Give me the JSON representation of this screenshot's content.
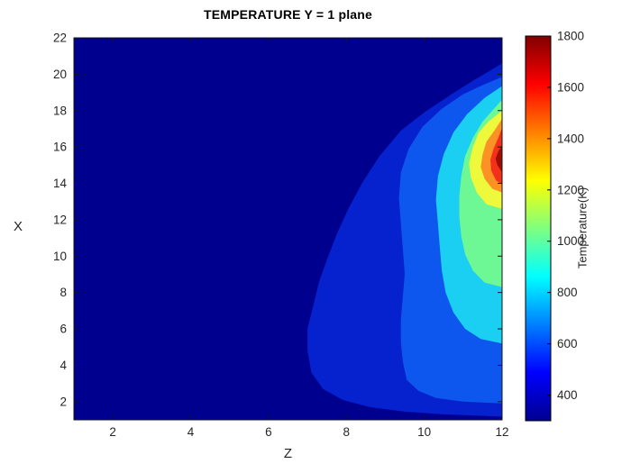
{
  "chart_data": {
    "type": "heatmap",
    "subtype": "filled-contour",
    "title": "TEMPERATURE Y = 1 plane",
    "xlabel": "Z",
    "ylabel": "X",
    "xlim": [
      1,
      12
    ],
    "ylim": [
      1,
      22
    ],
    "xticks": [
      2,
      4,
      6,
      8,
      10,
      12
    ],
    "yticks": [
      2,
      4,
      6,
      8,
      10,
      12,
      14,
      16,
      18,
      20,
      22
    ],
    "grid": false,
    "axis_color": "#151515",
    "tick_label_color": "#262626",
    "hotspot": {
      "z": 12,
      "x": 15.3,
      "peak_value": 1800
    },
    "background_band": {
      "color": "#00008F",
      "value_range": [
        300,
        467
      ]
    },
    "bands": [
      {
        "name": "band-467-633",
        "color": "#0522CE",
        "value_range": [
          467,
          633
        ],
        "points": [
          [
            12,
            1.18
          ],
          [
            10.5,
            1.3
          ],
          [
            9.5,
            1.45
          ],
          [
            8.6,
            1.7
          ],
          [
            7.9,
            2.1
          ],
          [
            7.4,
            2.7
          ],
          [
            7.1,
            3.6
          ],
          [
            7.0,
            4.8
          ],
          [
            7.0,
            6.0
          ],
          [
            7.15,
            7.3
          ],
          [
            7.3,
            8.6
          ],
          [
            7.5,
            9.8
          ],
          [
            7.75,
            11.2
          ],
          [
            8.05,
            12.6
          ],
          [
            8.4,
            14.0
          ],
          [
            8.85,
            15.5
          ],
          [
            9.4,
            16.9
          ],
          [
            10.0,
            17.9
          ],
          [
            10.7,
            18.9
          ],
          [
            11.3,
            19.7
          ],
          [
            11.7,
            20.2
          ],
          [
            12,
            20.6
          ]
        ]
      },
      {
        "name": "band-633-800",
        "color": "#0D57EE",
        "value_range": [
          633,
          800
        ],
        "points": [
          [
            12,
            1.9
          ],
          [
            11.0,
            2.0
          ],
          [
            10.3,
            2.2
          ],
          [
            9.85,
            2.6
          ],
          [
            9.55,
            3.2
          ],
          [
            9.45,
            4.2
          ],
          [
            9.4,
            5.3
          ],
          [
            9.4,
            6.5
          ],
          [
            9.45,
            7.8
          ],
          [
            9.5,
            9.0
          ],
          [
            9.45,
            10.4
          ],
          [
            9.4,
            11.8
          ],
          [
            9.35,
            13.2
          ],
          [
            9.4,
            14.6
          ],
          [
            9.6,
            15.9
          ],
          [
            9.95,
            17.1
          ],
          [
            10.45,
            18.1
          ],
          [
            11.0,
            18.9
          ],
          [
            11.5,
            19.4
          ],
          [
            12,
            19.85
          ]
        ]
      },
      {
        "name": "band-800-967",
        "color": "#1BCFF2",
        "value_range": [
          800,
          967
        ],
        "points": [
          [
            12,
            5.2
          ],
          [
            11.45,
            5.45
          ],
          [
            11.05,
            6.0
          ],
          [
            10.75,
            6.9
          ],
          [
            10.55,
            8.0
          ],
          [
            10.45,
            9.2
          ],
          [
            10.4,
            10.5
          ],
          [
            10.35,
            11.8
          ],
          [
            10.3,
            13.1
          ],
          [
            10.35,
            14.4
          ],
          [
            10.5,
            15.6
          ],
          [
            10.75,
            16.8
          ],
          [
            11.1,
            17.8
          ],
          [
            11.55,
            18.7
          ],
          [
            12,
            19.35
          ]
        ]
      },
      {
        "name": "band-967-1133",
        "color": "#6EF795",
        "value_range": [
          967,
          1133
        ],
        "points": [
          [
            12,
            8.3
          ],
          [
            11.55,
            8.55
          ],
          [
            11.25,
            9.2
          ],
          [
            11.05,
            10.1
          ],
          [
            10.95,
            11.1
          ],
          [
            10.9,
            12.2
          ],
          [
            10.9,
            13.3
          ],
          [
            10.95,
            14.4
          ],
          [
            11.05,
            15.5
          ],
          [
            11.25,
            16.5
          ],
          [
            11.5,
            17.4
          ],
          [
            11.75,
            18.0
          ],
          [
            12,
            18.6
          ]
        ]
      },
      {
        "name": "band-1133-1300",
        "color": "#EFF93B",
        "value_range": [
          1133,
          1300
        ],
        "points": [
          [
            12,
            12.6
          ],
          [
            11.6,
            12.85
          ],
          [
            11.35,
            13.5
          ],
          [
            11.2,
            14.3
          ],
          [
            11.15,
            15.1
          ],
          [
            11.25,
            16.0
          ],
          [
            11.4,
            16.8
          ],
          [
            11.65,
            17.4
          ],
          [
            12,
            18.0
          ]
        ]
      },
      {
        "name": "band-1300-1467",
        "color": "#FB9226",
        "value_range": [
          1300,
          1467
        ],
        "points": [
          [
            12,
            13.5
          ],
          [
            11.75,
            13.7
          ],
          [
            11.55,
            14.25
          ],
          [
            11.45,
            14.9
          ],
          [
            11.5,
            15.6
          ],
          [
            11.6,
            16.3
          ],
          [
            11.8,
            16.9
          ],
          [
            12,
            17.55
          ]
        ]
      },
      {
        "name": "band-1467-1633",
        "color": "#F4301B",
        "value_range": [
          1467,
          1633
        ],
        "points": [
          [
            12,
            13.95
          ],
          [
            11.85,
            14.15
          ],
          [
            11.72,
            14.7
          ],
          [
            11.7,
            15.3
          ],
          [
            11.78,
            15.9
          ],
          [
            11.9,
            16.5
          ],
          [
            12,
            17.05
          ]
        ]
      },
      {
        "name": "band-1633-1800",
        "color": "#9E0E00",
        "value_range": [
          1633,
          1800
        ],
        "points": [
          [
            12,
            14.6
          ],
          [
            11.88,
            15.0
          ],
          [
            11.83,
            15.35
          ],
          [
            11.9,
            15.75
          ],
          [
            12,
            16.1
          ]
        ]
      }
    ],
    "colorbar": {
      "label": "Temperature(K)",
      "min": 300,
      "max": 1800,
      "ticks": [
        400,
        600,
        800,
        1000,
        1200,
        1400,
        1600,
        1800
      ],
      "gradient_stops": [
        {
          "offset": 0.0,
          "color": "#00008F"
        },
        {
          "offset": 0.125,
          "color": "#0000FF"
        },
        {
          "offset": 0.375,
          "color": "#00FFFF"
        },
        {
          "offset": 0.625,
          "color": "#FFFF00"
        },
        {
          "offset": 0.875,
          "color": "#FF0000"
        },
        {
          "offset": 1.0,
          "color": "#800000"
        }
      ]
    }
  }
}
